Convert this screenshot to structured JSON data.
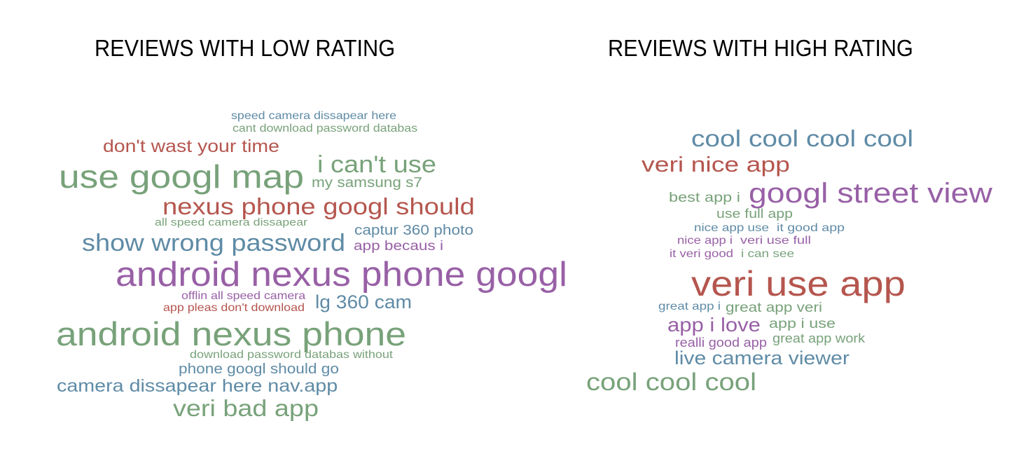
{
  "titles": {
    "low": "REVIEWS WITH LOW RATING",
    "high": "REVIEWS WITH HIGH RATING"
  },
  "colors": {
    "green": "#78a27a",
    "red": "#b5564e",
    "blue": "#5f8ba6",
    "purple": "#9860a6"
  },
  "low_cloud": {
    "words": [
      {
        "text": "speed camera dissapear here",
        "color": "blue"
      },
      {
        "text": "cant download password databas",
        "color": "green"
      },
      {
        "text": "don't wast your time",
        "color": "red"
      },
      {
        "text": "use googl map",
        "color": "green"
      },
      {
        "text": "i can't use",
        "color": "green"
      },
      {
        "text": "my samsung s7",
        "color": "green"
      },
      {
        "text": "nexus phone googl should",
        "color": "red"
      },
      {
        "text": "all speed camera dissapear",
        "color": "green"
      },
      {
        "text": "captur 360 photo",
        "color": "blue"
      },
      {
        "text": "show wrong password",
        "color": "blue"
      },
      {
        "text": "app becaus i",
        "color": "purple"
      },
      {
        "text": "android nexus phone googl",
        "color": "purple"
      },
      {
        "text": "offlin all speed camera",
        "color": "purple"
      },
      {
        "text": "lg 360 cam",
        "color": "blue"
      },
      {
        "text": "app pleas don't download",
        "color": "red"
      },
      {
        "text": "android nexus phone",
        "color": "green"
      },
      {
        "text": "download password databas without",
        "color": "green"
      },
      {
        "text": "phone googl should go",
        "color": "blue"
      },
      {
        "text": "camera dissapear here nav.app",
        "color": "blue"
      },
      {
        "text": "veri bad app",
        "color": "green"
      }
    ]
  },
  "high_cloud": {
    "words": [
      {
        "text": "cool cool cool cool",
        "color": "blue"
      },
      {
        "text": "veri nice app",
        "color": "red"
      },
      {
        "text": "best app i",
        "color": "green"
      },
      {
        "text": "googl street view",
        "color": "purple"
      },
      {
        "text": "use full app",
        "color": "green"
      },
      {
        "text": "nice app use",
        "color": "blue"
      },
      {
        "text": "it good app",
        "color": "blue"
      },
      {
        "text": "nice app i",
        "color": "purple"
      },
      {
        "text": "veri use full",
        "color": "purple"
      },
      {
        "text": "it veri good",
        "color": "purple"
      },
      {
        "text": "i can see",
        "color": "green"
      },
      {
        "text": "veri use app",
        "color": "red"
      },
      {
        "text": "great app i",
        "color": "blue"
      },
      {
        "text": "great app veri",
        "color": "green"
      },
      {
        "text": "app i love",
        "color": "purple"
      },
      {
        "text": "app i use",
        "color": "green"
      },
      {
        "text": "realli good app",
        "color": "purple"
      },
      {
        "text": "great app work",
        "color": "green"
      },
      {
        "text": "live camera viewer",
        "color": "blue"
      },
      {
        "text": "cool cool cool",
        "color": "green"
      }
    ]
  }
}
